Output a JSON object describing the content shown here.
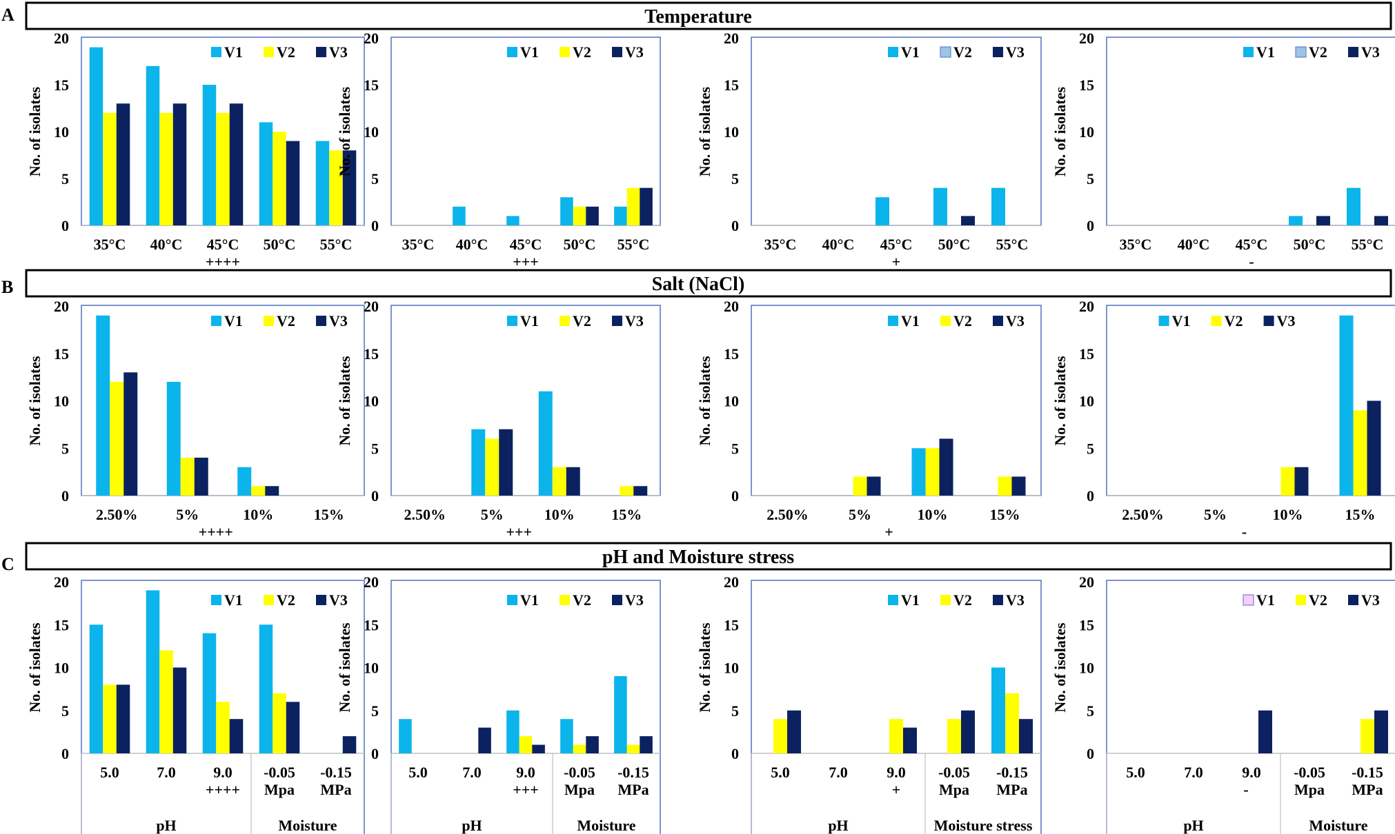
{
  "figure": {
    "section_letters": [
      "A",
      "B",
      "C"
    ],
    "section_titles": [
      "Temperature",
      "Salt (NaCl)",
      "pH and Moisture stress"
    ]
  },
  "colors": {
    "V1": "#0CB4EC",
    "V2": "#FFFF00",
    "V3": "#0C2260",
    "V2_alt": "#9DC3E6",
    "V1_alt": "#FFCCFF",
    "frame": "#4F71BE",
    "axis_text": "#000000"
  },
  "chart_data": [
    {
      "type": "bar",
      "section": 0,
      "col": 0,
      "title": "",
      "ylabel": "No. of isolates",
      "ylim": [
        0,
        20
      ],
      "yticks": [
        0,
        5,
        10,
        15,
        20
      ],
      "categories": [
        "35°C",
        "40°C",
        "45°C",
        "50°C",
        "55°C"
      ],
      "series": [
        {
          "name": "V1",
          "values": [
            19,
            17,
            15,
            11,
            9
          ]
        },
        {
          "name": "V2",
          "values": [
            12,
            12,
            12,
            10,
            8
          ]
        },
        {
          "name": "V3",
          "values": [
            13,
            13,
            13,
            9,
            8
          ]
        }
      ],
      "annotation": "++++",
      "legend_position": "top-right"
    },
    {
      "type": "bar",
      "section": 0,
      "col": 1,
      "title": "",
      "ylabel": "No. of isolates",
      "ylim": [
        0,
        20
      ],
      "yticks": [
        0,
        5,
        10,
        15,
        20
      ],
      "categories": [
        "35°C",
        "40°C",
        "45°C",
        "50°C",
        "55°C"
      ],
      "series": [
        {
          "name": "V1",
          "values": [
            0,
            2,
            1,
            3,
            2
          ]
        },
        {
          "name": "V2",
          "values": [
            0,
            0,
            0,
            2,
            4
          ]
        },
        {
          "name": "V3",
          "values": [
            0,
            0,
            0,
            2,
            4
          ]
        }
      ],
      "annotation": "+++",
      "legend_position": "top-right"
    },
    {
      "type": "bar",
      "section": 0,
      "col": 2,
      "title": "",
      "ylabel": "No. of isolates",
      "ylim": [
        0,
        20
      ],
      "yticks": [
        0,
        5,
        10,
        15,
        20
      ],
      "categories": [
        "35°C",
        "40°C",
        "45°C",
        "50°C",
        "55°C"
      ],
      "series": [
        {
          "name": "V1",
          "values": [
            0,
            0,
            3,
            4,
            4
          ]
        },
        {
          "name": "V2",
          "values": [
            0,
            0,
            0,
            0,
            0
          ],
          "color": "#9DC3E6"
        },
        {
          "name": "V3",
          "values": [
            0,
            0,
            0,
            1,
            0
          ]
        }
      ],
      "annotation": "+",
      "legend_position": "top-right"
    },
    {
      "type": "bar",
      "section": 0,
      "col": 3,
      "title": "",
      "ylabel": "No. of isolates",
      "ylim": [
        0,
        20
      ],
      "yticks": [
        0,
        5,
        10,
        15,
        20
      ],
      "categories": [
        "35°C",
        "40°C",
        "45°C",
        "50°C",
        "55°C"
      ],
      "series": [
        {
          "name": "V1",
          "values": [
            0,
            0,
            0,
            1,
            4
          ]
        },
        {
          "name": "V2",
          "values": [
            0,
            0,
            0,
            0,
            0
          ],
          "color": "#9DC3E6"
        },
        {
          "name": "V3",
          "values": [
            0,
            0,
            0,
            1,
            1
          ]
        }
      ],
      "annotation": "-",
      "legend_position": "top-right"
    },
    {
      "type": "bar",
      "section": 1,
      "col": 0,
      "title": "",
      "ylabel": "No. of isolates",
      "ylim": [
        0,
        20
      ],
      "yticks": [
        0,
        5,
        10,
        15,
        20
      ],
      "categories": [
        "2.50%",
        "5%",
        "10%",
        "15%"
      ],
      "series": [
        {
          "name": "V1",
          "values": [
            19,
            12,
            3,
            0
          ]
        },
        {
          "name": "V2",
          "values": [
            12,
            4,
            1,
            0
          ]
        },
        {
          "name": "V3",
          "values": [
            13,
            4,
            1,
            0
          ]
        }
      ],
      "annotation": "++++",
      "legend_position": "top-right"
    },
    {
      "type": "bar",
      "section": 1,
      "col": 1,
      "title": "",
      "ylabel": "No. of isolates",
      "ylim": [
        0,
        20
      ],
      "yticks": [
        0,
        5,
        10,
        15,
        20
      ],
      "categories": [
        "2.50%",
        "5%",
        "10%",
        "15%"
      ],
      "series": [
        {
          "name": "V1",
          "values": [
            0,
            7,
            11,
            0
          ]
        },
        {
          "name": "V2",
          "values": [
            0,
            6,
            3,
            1
          ]
        },
        {
          "name": "V3",
          "values": [
            0,
            7,
            3,
            1
          ]
        }
      ],
      "annotation": "+++",
      "legend_position": "top-right"
    },
    {
      "type": "bar",
      "section": 1,
      "col": 2,
      "title": "",
      "ylabel": "No. of isolates",
      "ylim": [
        0,
        20
      ],
      "yticks": [
        0,
        5,
        10,
        15,
        20
      ],
      "categories": [
        "2.50%",
        "5%",
        "10%",
        "15%"
      ],
      "series": [
        {
          "name": "V1",
          "values": [
            0,
            0,
            5,
            0
          ]
        },
        {
          "name": "V2",
          "values": [
            0,
            2,
            5,
            2
          ]
        },
        {
          "name": "V3",
          "values": [
            0,
            2,
            6,
            2
          ]
        }
      ],
      "annotation": "+",
      "legend_position": "top-right"
    },
    {
      "type": "bar",
      "section": 1,
      "col": 3,
      "title": "",
      "ylabel": "No. of isolates",
      "ylim": [
        0,
        20
      ],
      "yticks": [
        0,
        5,
        10,
        15,
        20
      ],
      "categories": [
        "2.50%",
        "5%",
        "10%",
        "15%"
      ],
      "series": [
        {
          "name": "V1",
          "values": [
            0,
            0,
            0,
            19
          ]
        },
        {
          "name": "V2",
          "values": [
            0,
            0,
            3,
            9
          ]
        },
        {
          "name": "V3",
          "values": [
            0,
            0,
            3,
            10
          ]
        }
      ],
      "annotation": "-",
      "legend_position": "top-center"
    },
    {
      "type": "bar",
      "section": 2,
      "col": 0,
      "title": "",
      "ylabel": "No. of isolates",
      "ylim": [
        0,
        20
      ],
      "yticks": [
        0,
        5,
        10,
        15,
        20
      ],
      "categories": [
        "5.0",
        "7.0",
        "9.0",
        "-0.05\nMpa",
        "-0.15\nMPa"
      ],
      "groups": [
        {
          "label": "pH",
          "span": 3
        },
        {
          "label": "Moisture",
          "span": 2
        }
      ],
      "series": [
        {
          "name": "V1",
          "values": [
            15,
            19,
            14,
            15,
            0
          ]
        },
        {
          "name": "V2",
          "values": [
            8,
            12,
            6,
            7,
            0
          ]
        },
        {
          "name": "V3",
          "values": [
            8,
            10,
            4,
            6,
            2
          ]
        }
      ],
      "annotation": "++++",
      "legend_position": "top-right"
    },
    {
      "type": "bar",
      "section": 2,
      "col": 1,
      "title": "",
      "ylabel": "No. of isolates",
      "ylim": [
        0,
        20
      ],
      "yticks": [
        0,
        5,
        10,
        15,
        20
      ],
      "categories": [
        "5.0",
        "7.0",
        "9.0",
        "-0.05\nMpa",
        "-0.15\nMPa"
      ],
      "groups": [
        {
          "label": "pH",
          "span": 3
        },
        {
          "label": "Moisture",
          "span": 2
        }
      ],
      "series": [
        {
          "name": "V1",
          "values": [
            4,
            0,
            5,
            4,
            9
          ]
        },
        {
          "name": "V2",
          "values": [
            0,
            0,
            2,
            1,
            1
          ]
        },
        {
          "name": "V3",
          "values": [
            0,
            3,
            1,
            2,
            2
          ]
        }
      ],
      "annotation": "+++",
      "legend_position": "top-right"
    },
    {
      "type": "bar",
      "section": 2,
      "col": 2,
      "title": "",
      "ylabel": "No. of isolates",
      "ylim": [
        0,
        20
      ],
      "yticks": [
        0,
        5,
        10,
        15,
        20
      ],
      "categories": [
        "5.0",
        "7.0",
        "9.0",
        "-0.05\nMpa",
        "-0.15\nMPa"
      ],
      "groups": [
        {
          "label": "pH",
          "span": 3
        },
        {
          "label": "Moisture stress",
          "span": 2
        }
      ],
      "series": [
        {
          "name": "V1",
          "values": [
            0,
            0,
            0,
            0,
            10
          ]
        },
        {
          "name": "V2",
          "values": [
            4,
            0,
            4,
            4,
            7
          ]
        },
        {
          "name": "V3",
          "values": [
            5,
            0,
            3,
            5,
            4
          ]
        }
      ],
      "annotation": "+",
      "legend_position": "top-right"
    },
    {
      "type": "bar",
      "section": 2,
      "col": 3,
      "title": "",
      "ylabel": "No. of isolates",
      "ylim": [
        0,
        20
      ],
      "yticks": [
        0,
        5,
        10,
        15,
        20
      ],
      "categories": [
        "5.0",
        "7.0",
        "9.0",
        "-0.05\nMpa",
        "-0.15\nMPa"
      ],
      "groups": [
        {
          "label": "pH",
          "span": 3
        },
        {
          "label": "Moisture",
          "span": 2
        }
      ],
      "series": [
        {
          "name": "V1",
          "values": [
            0,
            0,
            0,
            0,
            0
          ],
          "color": "#FFCCFF"
        },
        {
          "name": "V2",
          "values": [
            0,
            0,
            0,
            0,
            4
          ]
        },
        {
          "name": "V3",
          "values": [
            0,
            0,
            5,
            0,
            5
          ]
        }
      ],
      "annotation": "-",
      "legend_position": "top-right"
    }
  ]
}
